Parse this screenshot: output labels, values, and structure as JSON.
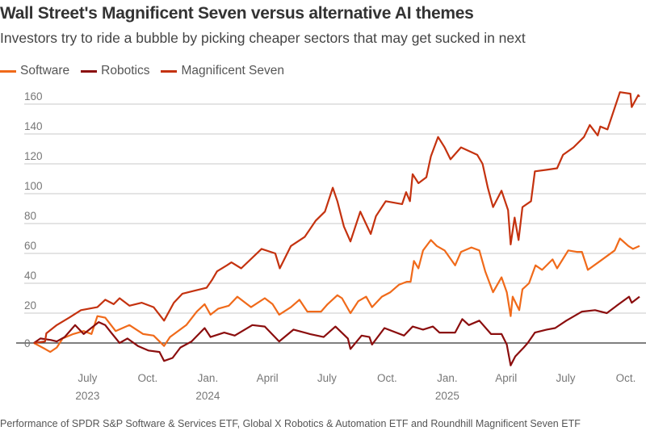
{
  "title": "Wall Street's Magnificent Seven versus alternative AI themes",
  "subtitle": "Investors try to ride a bubble by picking cheaper sectors that may get sucked in next",
  "footer": "Performance of SPDR S&P Software & Services ETF, Global X Robotics & Automation ETF and Roundhill Magnificent Seven ETF",
  "chart_data": {
    "type": "line",
    "title": "Wall Street's Magnificent Seven versus alternative AI themes",
    "xlabel": "",
    "ylabel": "",
    "ylim": [
      -16,
      168
    ],
    "xlim": [
      "2023-04-10",
      "2025-10-22"
    ],
    "grid": true,
    "legend": "top-left",
    "yticks": [
      0,
      20,
      40,
      60,
      80,
      100,
      120,
      140,
      160
    ],
    "ytick_labels": [
      "0",
      "20",
      "40",
      "60",
      "80",
      "100",
      "120",
      "140",
      "160"
    ],
    "xticks": [
      {
        "date": "2023-07-01",
        "label": "July",
        "year": "2023"
      },
      {
        "date": "2023-10-01",
        "label": "Oct.",
        "year": ""
      },
      {
        "date": "2024-01-01",
        "label": "Jan.",
        "year": "2024"
      },
      {
        "date": "2024-04-01",
        "label": "April",
        "year": ""
      },
      {
        "date": "2024-07-01",
        "label": "July",
        "year": ""
      },
      {
        "date": "2024-10-01",
        "label": "Oct.",
        "year": ""
      },
      {
        "date": "2025-01-01",
        "label": "Jan.",
        "year": "2025"
      },
      {
        "date": "2025-04-01",
        "label": "April",
        "year": ""
      },
      {
        "date": "2025-07-01",
        "label": "July",
        "year": ""
      },
      {
        "date": "2025-10-01",
        "label": "Oct.",
        "year": ""
      }
    ],
    "series": [
      {
        "name": "Software",
        "color": "#f06a1a",
        "points": [
          [
            "2023-04-10",
            0
          ],
          [
            "2023-04-27",
            -4
          ],
          [
            "2023-05-05",
            -6
          ],
          [
            "2023-05-15",
            -3
          ],
          [
            "2023-05-24",
            3
          ],
          [
            "2023-06-09",
            6
          ],
          [
            "2023-06-25",
            8
          ],
          [
            "2023-07-07",
            6
          ],
          [
            "2023-07-16",
            18
          ],
          [
            "2023-07-28",
            17
          ],
          [
            "2023-08-13",
            8
          ],
          [
            "2023-09-03",
            12
          ],
          [
            "2023-09-24",
            6
          ],
          [
            "2023-10-10",
            5
          ],
          [
            "2023-10-26",
            -2
          ],
          [
            "2023-11-04",
            4
          ],
          [
            "2023-11-29",
            12
          ],
          [
            "2023-12-15",
            21
          ],
          [
            "2023-12-27",
            26
          ],
          [
            "2024-01-05",
            19
          ],
          [
            "2024-01-17",
            23
          ],
          [
            "2024-02-02",
            25
          ],
          [
            "2024-02-15",
            31
          ],
          [
            "2024-03-07",
            24
          ],
          [
            "2024-03-28",
            30
          ],
          [
            "2024-04-09",
            26
          ],
          [
            "2024-04-19",
            19
          ],
          [
            "2024-05-07",
            24
          ],
          [
            "2024-05-20",
            29
          ],
          [
            "2024-06-01",
            21
          ],
          [
            "2024-06-22",
            21
          ],
          [
            "2024-07-02",
            26
          ],
          [
            "2024-07-17",
            32
          ],
          [
            "2024-07-24",
            30
          ],
          [
            "2024-08-06",
            20
          ],
          [
            "2024-08-18",
            28
          ],
          [
            "2024-08-30",
            31
          ],
          [
            "2024-09-08",
            24
          ],
          [
            "2024-09-23",
            31
          ],
          [
            "2024-10-06",
            34
          ],
          [
            "2024-10-19",
            39
          ],
          [
            "2024-10-31",
            41
          ],
          [
            "2024-11-06",
            41
          ],
          [
            "2024-11-11",
            55
          ],
          [
            "2024-11-18",
            50
          ],
          [
            "2024-11-25",
            62
          ],
          [
            "2024-12-07",
            69
          ],
          [
            "2024-12-16",
            65
          ],
          [
            "2024-12-28",
            62
          ],
          [
            "2025-01-13",
            52
          ],
          [
            "2025-01-22",
            61
          ],
          [
            "2025-02-07",
            64
          ],
          [
            "2025-02-19",
            62
          ],
          [
            "2025-02-28",
            48
          ],
          [
            "2025-03-12",
            34
          ],
          [
            "2025-03-25",
            44
          ],
          [
            "2025-04-02",
            34
          ],
          [
            "2025-04-08",
            18
          ],
          [
            "2025-04-11",
            31
          ],
          [
            "2025-04-21",
            22
          ],
          [
            "2025-04-26",
            36
          ],
          [
            "2025-05-06",
            40
          ],
          [
            "2025-05-16",
            52
          ],
          [
            "2025-05-26",
            49
          ],
          [
            "2025-06-11",
            56
          ],
          [
            "2025-06-18",
            50
          ],
          [
            "2025-07-05",
            62
          ],
          [
            "2025-07-18",
            61
          ],
          [
            "2025-07-26",
            61
          ],
          [
            "2025-08-04",
            49
          ],
          [
            "2025-08-23",
            55
          ],
          [
            "2025-09-14",
            62
          ],
          [
            "2025-09-22",
            70
          ],
          [
            "2025-10-05",
            65
          ],
          [
            "2025-10-12",
            63
          ],
          [
            "2025-10-22",
            65
          ]
        ]
      },
      {
        "name": "Robotics",
        "color": "#8b0e0e",
        "points": [
          [
            "2023-04-10",
            0
          ],
          [
            "2023-04-20",
            3
          ],
          [
            "2023-05-06",
            2
          ],
          [
            "2023-05-15",
            1
          ],
          [
            "2023-05-27",
            4
          ],
          [
            "2023-06-12",
            12
          ],
          [
            "2023-06-25",
            6
          ],
          [
            "2023-07-18",
            14
          ],
          [
            "2023-07-28",
            12
          ],
          [
            "2023-08-06",
            7
          ],
          [
            "2023-08-19",
            0
          ],
          [
            "2023-08-31",
            3
          ],
          [
            "2023-09-16",
            -2
          ],
          [
            "2023-10-02",
            -5
          ],
          [
            "2023-10-19",
            -6
          ],
          [
            "2023-10-26",
            -12
          ],
          [
            "2023-11-08",
            -10
          ],
          [
            "2023-11-20",
            -3
          ],
          [
            "2023-12-07",
            1
          ],
          [
            "2023-12-27",
            10
          ],
          [
            "2024-01-05",
            4
          ],
          [
            "2024-01-26",
            7
          ],
          [
            "2024-02-11",
            5
          ],
          [
            "2024-03-09",
            12
          ],
          [
            "2024-03-28",
            11
          ],
          [
            "2024-04-19",
            1
          ],
          [
            "2024-05-11",
            9
          ],
          [
            "2024-06-05",
            6
          ],
          [
            "2024-06-26",
            4
          ],
          [
            "2024-07-14",
            11
          ],
          [
            "2024-08-02",
            3
          ],
          [
            "2024-08-06",
            -4
          ],
          [
            "2024-08-23",
            5
          ],
          [
            "2024-09-04",
            4
          ],
          [
            "2024-09-08",
            -1
          ],
          [
            "2024-09-27",
            10
          ],
          [
            "2024-10-27",
            5
          ],
          [
            "2024-11-09",
            11
          ],
          [
            "2024-11-25",
            9
          ],
          [
            "2024-12-10",
            11
          ],
          [
            "2024-12-20",
            7
          ],
          [
            "2025-01-13",
            7
          ],
          [
            "2025-01-24",
            16
          ],
          [
            "2025-02-03",
            12
          ],
          [
            "2025-02-19",
            15
          ],
          [
            "2025-03-09",
            6
          ],
          [
            "2025-03-25",
            6
          ],
          [
            "2025-04-02",
            -1
          ],
          [
            "2025-04-08",
            -15
          ],
          [
            "2025-04-15",
            -9
          ],
          [
            "2025-04-28",
            -3
          ],
          [
            "2025-05-04",
            0
          ],
          [
            "2025-05-15",
            7
          ],
          [
            "2025-06-02",
            9
          ],
          [
            "2025-06-15",
            10
          ],
          [
            "2025-07-02",
            15
          ],
          [
            "2025-07-26",
            21
          ],
          [
            "2025-08-15",
            22
          ],
          [
            "2025-09-02",
            20
          ],
          [
            "2025-09-17",
            25
          ],
          [
            "2025-10-06",
            31
          ],
          [
            "2025-10-10",
            27
          ],
          [
            "2025-10-22",
            31
          ]
        ]
      },
      {
        "name": "Magnificent Seven",
        "color": "#c4320f",
        "points": [
          [
            "2023-04-10",
            0
          ],
          [
            "2023-04-27",
            1
          ],
          [
            "2023-04-29",
            6.5
          ],
          [
            "2023-05-15",
            12
          ],
          [
            "2023-06-03",
            17
          ],
          [
            "2023-06-21",
            22
          ],
          [
            "2023-07-16",
            24
          ],
          [
            "2023-07-28",
            29
          ],
          [
            "2023-08-10",
            26
          ],
          [
            "2023-08-19",
            30
          ],
          [
            "2023-09-03",
            25
          ],
          [
            "2023-09-22",
            27
          ],
          [
            "2023-10-10",
            24
          ],
          [
            "2023-10-26",
            15
          ],
          [
            "2023-11-10",
            27
          ],
          [
            "2023-11-23",
            33
          ],
          [
            "2023-12-11",
            35
          ],
          [
            "2023-12-30",
            37
          ],
          [
            "2024-01-07",
            42
          ],
          [
            "2024-01-15",
            48
          ],
          [
            "2024-01-30",
            52
          ],
          [
            "2024-02-06",
            54
          ],
          [
            "2024-02-21",
            50
          ],
          [
            "2024-03-23",
            63
          ],
          [
            "2024-04-13",
            60
          ],
          [
            "2024-04-20",
            50
          ],
          [
            "2024-05-07",
            65
          ],
          [
            "2024-05-28",
            71
          ],
          [
            "2024-06-14",
            82
          ],
          [
            "2024-06-28",
            88
          ],
          [
            "2024-07-10",
            104
          ],
          [
            "2024-07-17",
            95
          ],
          [
            "2024-07-27",
            78
          ],
          [
            "2024-08-06",
            68
          ],
          [
            "2024-08-21",
            88
          ],
          [
            "2024-09-06",
            73
          ],
          [
            "2024-09-14",
            85
          ],
          [
            "2024-09-29",
            95
          ],
          [
            "2024-10-24",
            93
          ],
          [
            "2024-10-30",
            101
          ],
          [
            "2024-11-05",
            95
          ],
          [
            "2024-11-09",
            113
          ],
          [
            "2024-11-18",
            107
          ],
          [
            "2024-11-30",
            111
          ],
          [
            "2024-12-07",
            125
          ],
          [
            "2024-12-18",
            138
          ],
          [
            "2024-12-28",
            131
          ],
          [
            "2025-01-06",
            123
          ],
          [
            "2025-01-22",
            131
          ],
          [
            "2025-02-16",
            126
          ],
          [
            "2025-02-24",
            120
          ],
          [
            "2025-03-04",
            104
          ],
          [
            "2025-03-12",
            91
          ],
          [
            "2025-03-25",
            102
          ],
          [
            "2025-04-04",
            89
          ],
          [
            "2025-04-08",
            66
          ],
          [
            "2025-04-14",
            84
          ],
          [
            "2025-04-20",
            69
          ],
          [
            "2025-04-26",
            91
          ],
          [
            "2025-05-09",
            95
          ],
          [
            "2025-05-15",
            115
          ],
          [
            "2025-06-02",
            116
          ],
          [
            "2025-06-18",
            117
          ],
          [
            "2025-06-27",
            126
          ],
          [
            "2025-07-13",
            131
          ],
          [
            "2025-07-29",
            138
          ],
          [
            "2025-08-07",
            146
          ],
          [
            "2025-08-19",
            139
          ],
          [
            "2025-08-23",
            145
          ],
          [
            "2025-09-03",
            143
          ],
          [
            "2025-09-22",
            168
          ],
          [
            "2025-10-08",
            167
          ],
          [
            "2025-10-10",
            158
          ],
          [
            "2025-10-20",
            166
          ],
          [
            "2025-10-22",
            165
          ]
        ]
      }
    ]
  }
}
